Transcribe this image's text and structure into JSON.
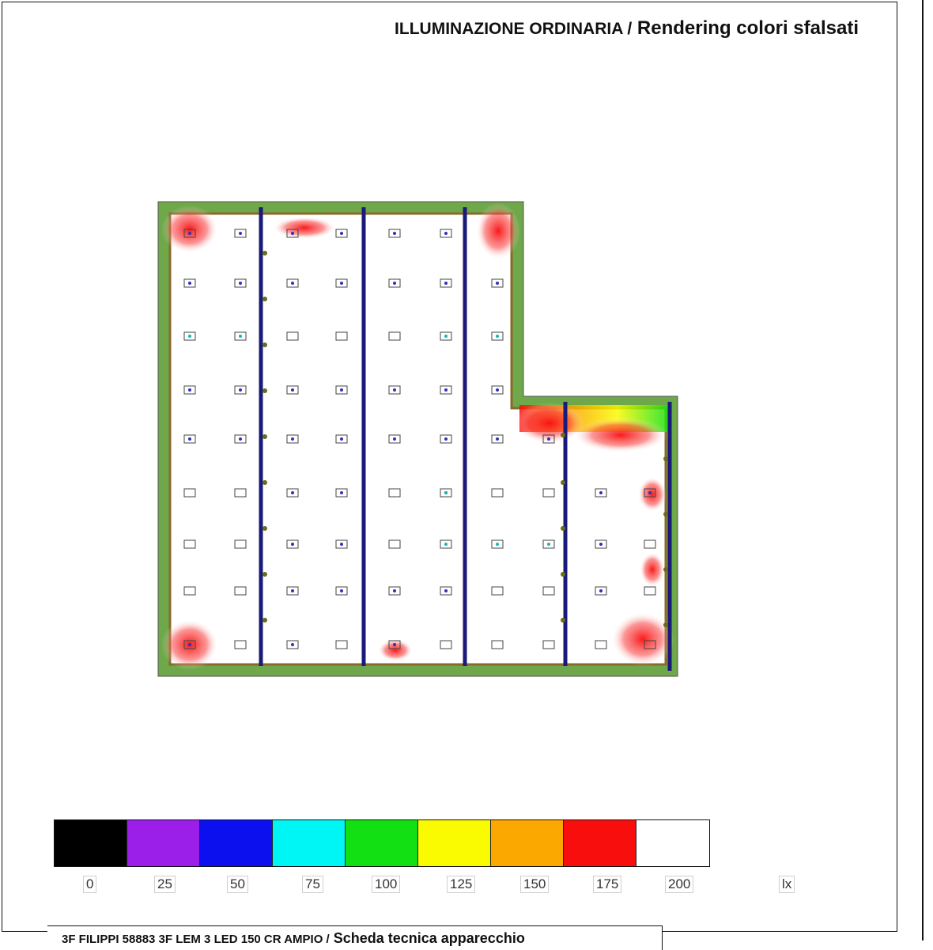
{
  "header": {
    "title_part1": "ILLUMINAZIONE ORDINARIA /",
    "title_part2": " Rendering colori sfalsati"
  },
  "legend": {
    "colors": [
      "#000000",
      "#9b1fe8",
      "#0c10ee",
      "#00f5f5",
      "#12e012",
      "#fafa00",
      "#fba800",
      "#f90e0e",
      "#ffffff"
    ],
    "ticks": [
      "0",
      "25",
      "50",
      "75",
      "100",
      "125",
      "150",
      "175",
      "200"
    ],
    "unit": "lx"
  },
  "footer": {
    "text_part1": "3F FILIPPI 58883 3F LEM 3 LED 150 CR AMPIO /",
    "text_part2": " Scheda tecnica apparecchio"
  }
}
